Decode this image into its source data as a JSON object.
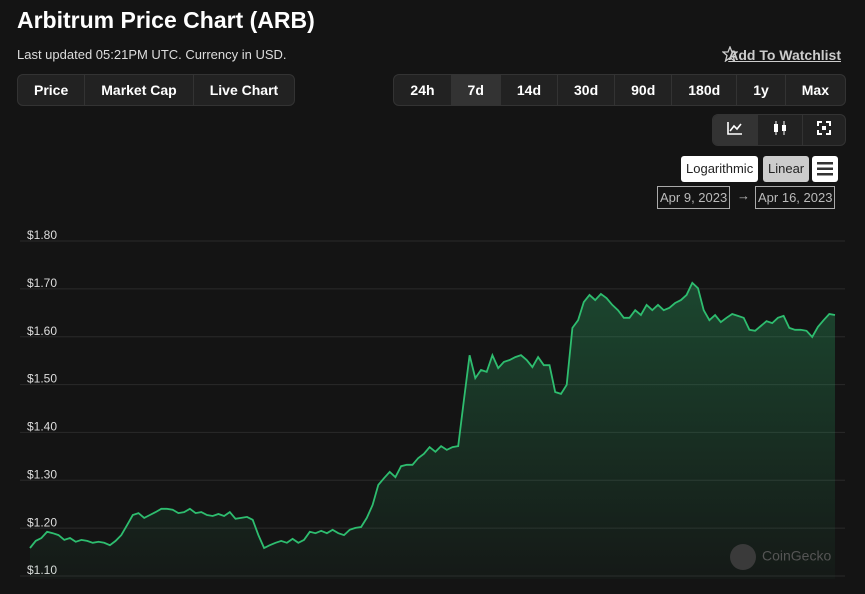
{
  "header": {
    "title": "Arbitrum Price Chart (ARB)",
    "subtitle": "Last updated 05:21PM UTC. Currency in USD.",
    "watchlist": "Add To Watchlist"
  },
  "tabs": [
    "Price",
    "Market Cap",
    "Live Chart"
  ],
  "ranges": [
    "24h",
    "7d",
    "14d",
    "30d",
    "90d",
    "180d",
    "1y",
    "Max"
  ],
  "active_range": "7d",
  "scales": [
    "Logarithmic",
    "Linear"
  ],
  "date_range": {
    "from": "Apr 9, 2023",
    "arrow": "→",
    "to": "Apr 16, 2023"
  },
  "watermark": "CoinGecko",
  "chart_data": {
    "type": "area",
    "color": "#2ebd6f",
    "ylim": [
      1.1,
      1.8
    ],
    "yticks": [
      {
        "value": 1.1,
        "label": "$1.10"
      },
      {
        "value": 1.2,
        "label": "$1.20"
      },
      {
        "value": 1.3,
        "label": "$1.30"
      },
      {
        "value": 1.4,
        "label": "$1.40"
      },
      {
        "value": 1.5,
        "label": "$1.50"
      },
      {
        "value": 1.6,
        "label": "$1.60"
      },
      {
        "value": 1.7,
        "label": "$1.70"
      },
      {
        "value": 1.8,
        "label": "$1.80"
      }
    ],
    "grid": true,
    "values": [
      1.148,
      1.163,
      1.169,
      1.182,
      1.179,
      1.175,
      1.165,
      1.169,
      1.161,
      1.165,
      1.163,
      1.159,
      1.161,
      1.159,
      1.154,
      1.163,
      1.175,
      1.196,
      1.217,
      1.221,
      1.211,
      1.217,
      1.223,
      1.23,
      1.23,
      1.228,
      1.221,
      1.223,
      1.23,
      1.221,
      1.223,
      1.217,
      1.215,
      1.219,
      1.215,
      1.223,
      1.209,
      1.211,
      1.213,
      1.207,
      1.175,
      1.148,
      1.154,
      1.159,
      1.163,
      1.159,
      1.167,
      1.159,
      1.165,
      1.182,
      1.179,
      1.184,
      1.179,
      1.186,
      1.179,
      1.175,
      1.186,
      1.19,
      1.192,
      1.211,
      1.238,
      1.28,
      1.294,
      1.307,
      1.296,
      1.319,
      1.322,
      1.322,
      1.336,
      1.345,
      1.359,
      1.349,
      1.361,
      1.353,
      1.359,
      1.361,
      1.457,
      1.551,
      1.503,
      1.52,
      1.516,
      1.551,
      1.524,
      1.537,
      1.541,
      1.547,
      1.551,
      1.541,
      1.526,
      1.547,
      1.53,
      1.53,
      1.474,
      1.47,
      1.489,
      1.608,
      1.624,
      1.662,
      1.677,
      1.666,
      1.679,
      1.67,
      1.656,
      1.645,
      1.629,
      1.629,
      1.645,
      1.635,
      1.656,
      1.645,
      1.656,
      1.645,
      1.65,
      1.66,
      1.666,
      1.677,
      1.702,
      1.691,
      1.645,
      1.624,
      1.635,
      1.62,
      1.629,
      1.637,
      1.633,
      1.629,
      1.604,
      1.602,
      1.612,
      1.622,
      1.618,
      1.629,
      1.633,
      1.608,
      1.604,
      1.604,
      1.602,
      1.589,
      1.61,
      1.624,
      1.637,
      1.635
    ]
  }
}
